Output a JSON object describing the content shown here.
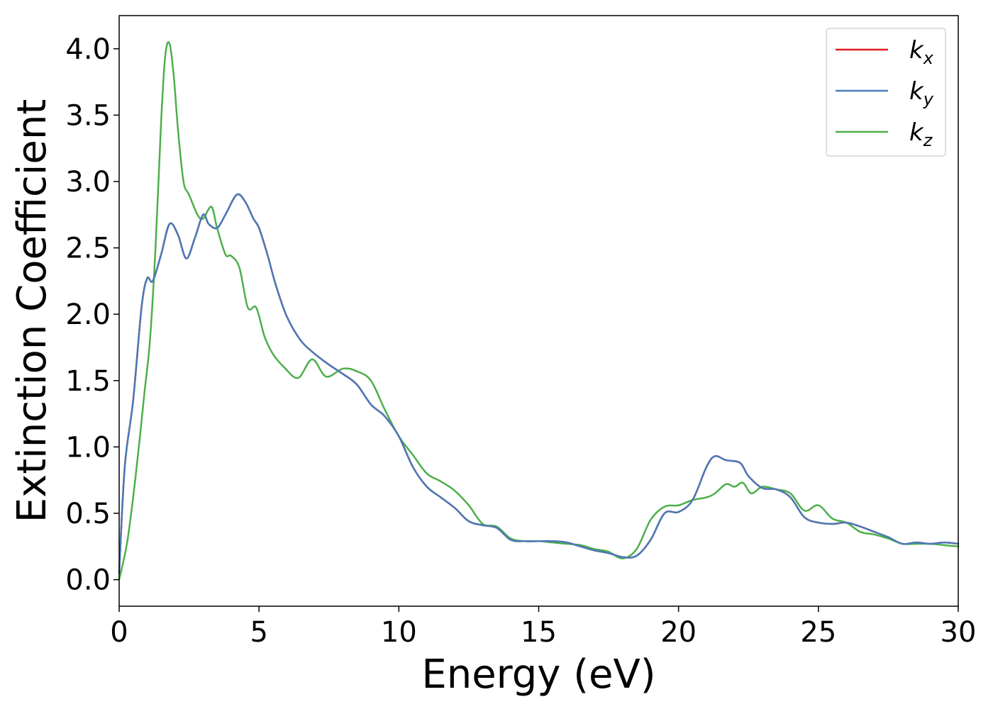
{
  "chart_data": {
    "type": "line",
    "xlabel": "Energy (eV)",
    "ylabel": "Extinction Coefficient",
    "xlim": [
      0,
      30
    ],
    "ylim": [
      -0.2,
      4.25
    ],
    "xticks": [
      "0",
      "5",
      "10",
      "15",
      "20",
      "25",
      "30"
    ],
    "yticks": [
      "0.0",
      "0.5",
      "1.0",
      "1.5",
      "2.0",
      "2.5",
      "3.0",
      "3.5",
      "4.0"
    ],
    "grid": false,
    "legend_position": "top-right",
    "series": [
      {
        "name": "k_x",
        "label_base": "k",
        "label_sub": "x",
        "color": "#e41a1c",
        "x": [
          0,
          0.2,
          0.5,
          0.8,
          1.0,
          1.2,
          1.5,
          1.8,
          2.1,
          2.4,
          2.7,
          3.0,
          3.2,
          3.5,
          3.8,
          4.2,
          4.5,
          4.8,
          5.0,
          5.3,
          5.6,
          6.0,
          6.5,
          7.0,
          7.5,
          8.0,
          8.5,
          9.0,
          9.5,
          10.0,
          10.5,
          11.0,
          11.5,
          12.0,
          12.5,
          13.0,
          13.5,
          14.0,
          14.5,
          15.0,
          15.5,
          16.0,
          16.5,
          17.0,
          17.5,
          18.0,
          18.5,
          19.0,
          19.5,
          20.0,
          20.5,
          21.0,
          21.3,
          21.7,
          22.2,
          22.5,
          23.0,
          23.5,
          24.0,
          24.5,
          25.0,
          25.5,
          26.0,
          26.5,
          27.0,
          27.5,
          28.0,
          28.5,
          29.0,
          29.5,
          30.0
        ],
        "y": [
          0.05,
          0.85,
          1.35,
          2.05,
          2.27,
          2.25,
          2.45,
          2.68,
          2.6,
          2.42,
          2.57,
          2.75,
          2.68,
          2.65,
          2.75,
          2.9,
          2.85,
          2.72,
          2.65,
          2.45,
          2.22,
          1.98,
          1.8,
          1.7,
          1.62,
          1.55,
          1.47,
          1.32,
          1.23,
          1.08,
          0.85,
          0.7,
          0.62,
          0.54,
          0.44,
          0.41,
          0.39,
          0.3,
          0.29,
          0.29,
          0.29,
          0.28,
          0.25,
          0.22,
          0.2,
          0.17,
          0.18,
          0.3,
          0.5,
          0.51,
          0.6,
          0.85,
          0.93,
          0.9,
          0.88,
          0.78,
          0.69,
          0.68,
          0.62,
          0.47,
          0.43,
          0.42,
          0.43,
          0.4,
          0.36,
          0.32,
          0.27,
          0.28,
          0.27,
          0.28,
          0.27
        ]
      },
      {
        "name": "k_y",
        "label_base": "k",
        "label_sub": "y",
        "color": "#4a7ab8",
        "x": [
          0,
          0.2,
          0.5,
          0.8,
          1.0,
          1.2,
          1.5,
          1.8,
          2.1,
          2.4,
          2.7,
          3.0,
          3.2,
          3.5,
          3.8,
          4.2,
          4.5,
          4.8,
          5.0,
          5.3,
          5.6,
          6.0,
          6.5,
          7.0,
          7.5,
          8.0,
          8.5,
          9.0,
          9.5,
          10.0,
          10.5,
          11.0,
          11.5,
          12.0,
          12.5,
          13.0,
          13.5,
          14.0,
          14.5,
          15.0,
          15.5,
          16.0,
          16.5,
          17.0,
          17.5,
          18.0,
          18.5,
          19.0,
          19.5,
          20.0,
          20.5,
          21.0,
          21.3,
          21.7,
          22.2,
          22.5,
          23.0,
          23.5,
          24.0,
          24.5,
          25.0,
          25.5,
          26.0,
          26.5,
          27.0,
          27.5,
          28.0,
          28.5,
          29.0,
          29.5,
          30.0
        ],
        "y": [
          0.05,
          0.85,
          1.35,
          2.05,
          2.27,
          2.25,
          2.45,
          2.68,
          2.6,
          2.42,
          2.57,
          2.75,
          2.68,
          2.65,
          2.75,
          2.9,
          2.85,
          2.72,
          2.65,
          2.45,
          2.22,
          1.98,
          1.8,
          1.7,
          1.62,
          1.55,
          1.47,
          1.32,
          1.23,
          1.08,
          0.85,
          0.7,
          0.62,
          0.54,
          0.44,
          0.41,
          0.39,
          0.3,
          0.29,
          0.29,
          0.29,
          0.28,
          0.25,
          0.22,
          0.2,
          0.17,
          0.18,
          0.3,
          0.5,
          0.51,
          0.6,
          0.85,
          0.93,
          0.9,
          0.88,
          0.78,
          0.69,
          0.68,
          0.62,
          0.47,
          0.43,
          0.42,
          0.43,
          0.4,
          0.36,
          0.32,
          0.27,
          0.28,
          0.27,
          0.28,
          0.27
        ]
      },
      {
        "name": "k_z",
        "label_base": "k",
        "label_sub": "z",
        "color": "#4daf4a",
        "x": [
          0,
          0.3,
          0.6,
          0.9,
          1.1,
          1.3,
          1.5,
          1.65,
          1.8,
          1.95,
          2.1,
          2.3,
          2.5,
          2.8,
          3.0,
          3.3,
          3.5,
          3.8,
          4.0,
          4.3,
          4.6,
          4.9,
          5.2,
          5.5,
          5.9,
          6.4,
          6.9,
          7.4,
          8.0,
          8.5,
          9.0,
          9.5,
          10.0,
          10.5,
          11.0,
          11.5,
          12.0,
          12.5,
          13.0,
          13.5,
          14.0,
          14.5,
          15.0,
          15.5,
          16.0,
          16.5,
          17.0,
          17.5,
          18.0,
          18.5,
          19.0,
          19.5,
          20.0,
          20.5,
          21.0,
          21.3,
          21.7,
          22.0,
          22.3,
          22.6,
          23.0,
          23.5,
          24.0,
          24.5,
          25.0,
          25.5,
          26.0,
          26.5,
          27.0,
          27.5,
          28.0,
          28.5,
          29.0,
          29.5,
          30.0
        ],
        "y": [
          0.0,
          0.3,
          0.8,
          1.4,
          1.8,
          2.5,
          3.45,
          3.95,
          4.04,
          3.8,
          3.4,
          3.0,
          2.9,
          2.75,
          2.72,
          2.81,
          2.65,
          2.45,
          2.44,
          2.35,
          2.05,
          2.05,
          1.83,
          1.7,
          1.6,
          1.52,
          1.66,
          1.53,
          1.59,
          1.57,
          1.5,
          1.28,
          1.08,
          0.94,
          0.8,
          0.74,
          0.67,
          0.56,
          0.42,
          0.4,
          0.31,
          0.29,
          0.29,
          0.28,
          0.27,
          0.26,
          0.23,
          0.21,
          0.16,
          0.23,
          0.45,
          0.55,
          0.56,
          0.6,
          0.62,
          0.65,
          0.72,
          0.7,
          0.73,
          0.65,
          0.7,
          0.68,
          0.65,
          0.52,
          0.56,
          0.46,
          0.43,
          0.36,
          0.34,
          0.31,
          0.27,
          0.27,
          0.27,
          0.26,
          0.25
        ]
      }
    ]
  }
}
